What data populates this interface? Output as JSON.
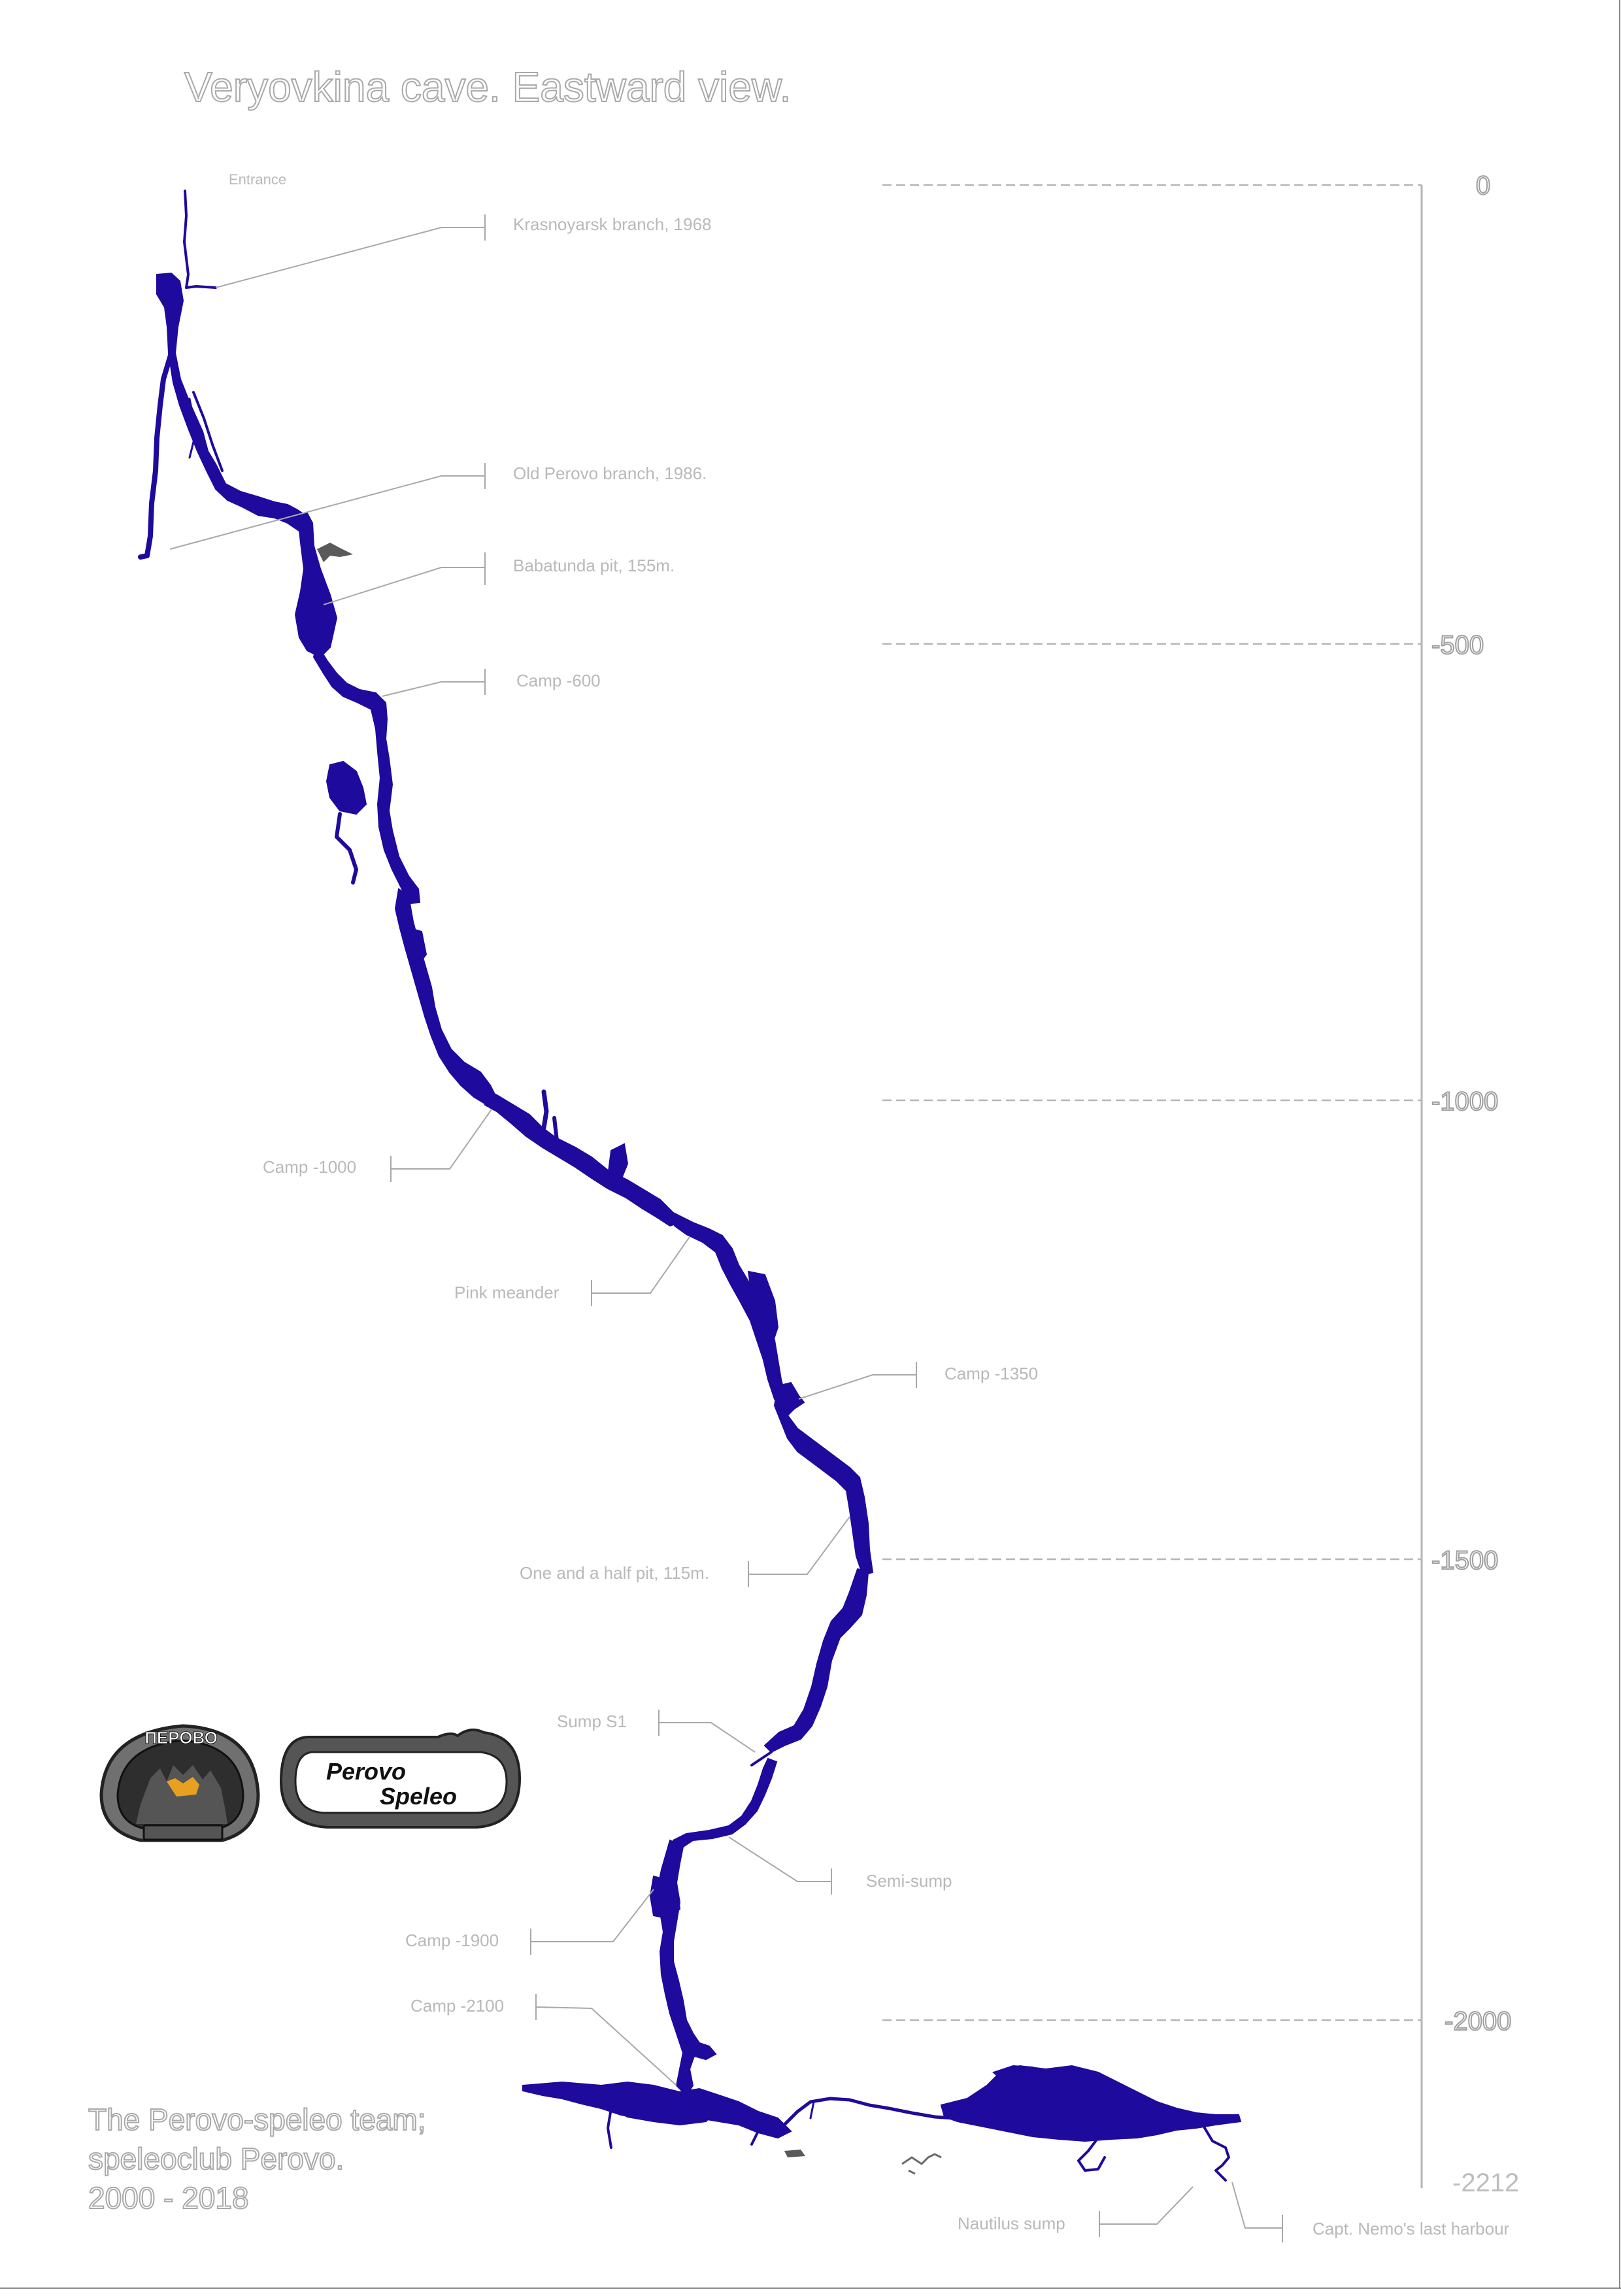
{
  "title": "Veryovkina cave. Eastward view.",
  "depth_scale": {
    "ticks": [
      "0",
      "-500",
      "-1000",
      "-1500",
      "-2000"
    ],
    "bottom": "-2212"
  },
  "labels": {
    "entrance": "Entrance",
    "krasnoyarsk": "Krasnoyarsk branch, 1968",
    "old_perovo": "Old Perovo branch, 1986.",
    "babatunda": "Babatunda pit, 155m.",
    "camp_600": "Camp -600",
    "camp_1000": "Camp -1000",
    "pink_meander": "Pink meander",
    "camp_1350": "Camp -1350",
    "one_and_half": "One and a half pit, 115m.",
    "sump_s1": "Sump S1",
    "semi_sump": "Semi-sump",
    "camp_1900": "Camp -1900",
    "camp_2100": "Camp -2100",
    "nautilus": "Nautilus sump",
    "nemo": "Capt. Nemo's last harbour"
  },
  "logos": {
    "perovo_emblem_text": "ПЕРОВО",
    "perovo_speleo_line1": "Perovo",
    "perovo_speleo_line2": "Speleo"
  },
  "credits": {
    "line1": "The Perovo-speleo team;",
    "line2": "speleoclub Perovo.",
    "line3": "2000 - 2018"
  },
  "colors": {
    "cave": "#1e0a9c",
    "labels": "#b9b9b9",
    "guides": "#b5b5b5"
  }
}
